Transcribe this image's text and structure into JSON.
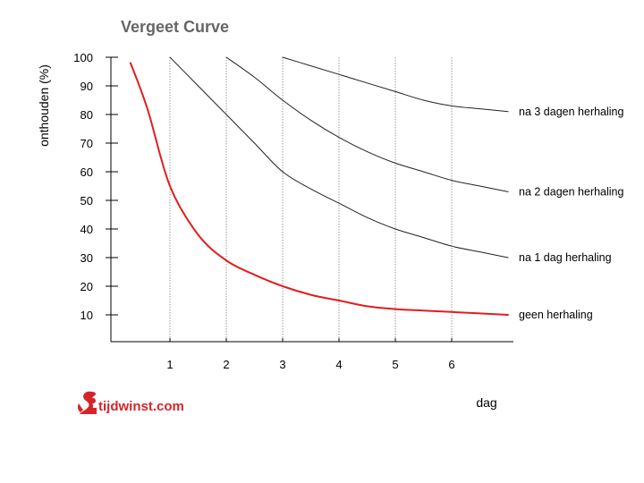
{
  "colors": {
    "primary_curve": "#e01e1e",
    "curves": "#222222",
    "grid": "#9a9a9a",
    "axis": "#000000",
    "title": "#666666",
    "brand": "#d6242a"
  },
  "logo": {
    "text": "tijdwinst.com",
    "icon": "squirrel-icon"
  },
  "chart_data": {
    "type": "line",
    "title": "Vergeet Curve",
    "xlabel": "dag",
    "ylabel": "onthouden (%)",
    "xlim": [
      0,
      7
    ],
    "ylim": [
      0,
      100
    ],
    "x_ticks": [
      "1",
      "2",
      "3",
      "4",
      "5",
      "6"
    ],
    "y_ticks": [
      "10",
      "20",
      "30",
      "40",
      "50",
      "60",
      "70",
      "80",
      "90",
      "100"
    ],
    "grid": "vertical dotted lines at days 1–6",
    "series": [
      {
        "name": "geen herhaling",
        "color": "#e01e1e",
        "points": [
          [
            0.3,
            98
          ],
          [
            0.6,
            82
          ],
          [
            1.0,
            55
          ],
          [
            1.5,
            38
          ],
          [
            2.0,
            29
          ],
          [
            2.5,
            24
          ],
          [
            3.0,
            20
          ],
          [
            3.5,
            17
          ],
          [
            4.0,
            15
          ],
          [
            4.5,
            13
          ],
          [
            5.0,
            12
          ],
          [
            5.5,
            11.5
          ],
          [
            6.0,
            11
          ],
          [
            6.5,
            10.5
          ],
          [
            7.0,
            10
          ]
        ]
      },
      {
        "name": "na 1 dag herhaling",
        "color": "#222222",
        "points": [
          [
            1.0,
            100
          ],
          [
            1.5,
            90
          ],
          [
            2.0,
            80
          ],
          [
            2.5,
            70
          ],
          [
            3.0,
            60
          ],
          [
            3.5,
            54
          ],
          [
            4.0,
            49
          ],
          [
            4.5,
            44
          ],
          [
            5.0,
            40
          ],
          [
            5.5,
            37
          ],
          [
            6.0,
            34
          ],
          [
            6.5,
            32
          ],
          [
            7.0,
            30
          ]
        ]
      },
      {
        "name": "na 2 dagen herhaling",
        "color": "#222222",
        "points": [
          [
            2.0,
            100
          ],
          [
            2.5,
            93
          ],
          [
            3.0,
            85
          ],
          [
            3.5,
            78
          ],
          [
            4.0,
            72
          ],
          [
            4.5,
            67
          ],
          [
            5.0,
            63
          ],
          [
            5.5,
            60
          ],
          [
            6.0,
            57
          ],
          [
            6.5,
            55
          ],
          [
            7.0,
            53
          ]
        ]
      },
      {
        "name": "na 3 dagen herhaling",
        "color": "#222222",
        "points": [
          [
            3.0,
            100
          ],
          [
            3.5,
            97
          ],
          [
            4.0,
            94
          ],
          [
            4.5,
            91
          ],
          [
            5.0,
            88
          ],
          [
            5.5,
            85
          ],
          [
            6.0,
            83
          ],
          [
            6.5,
            82
          ],
          [
            7.0,
            81
          ]
        ]
      }
    ]
  }
}
